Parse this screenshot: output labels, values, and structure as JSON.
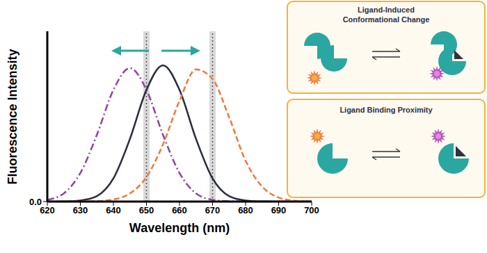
{
  "chart_data": {
    "type": "line",
    "x_label": "Wavelength (nm)",
    "y_label": "Fluorescence Intensity",
    "x": [
      620,
      625,
      630,
      635,
      640,
      645,
      650,
      655,
      660,
      665,
      670,
      675,
      680,
      685,
      690,
      695,
      700
    ],
    "series": [
      {
        "color": "#8e4a9e",
        "line_style": "dashdot",
        "values": [
          0.013,
          0.06,
          0.21,
          0.49,
          0.82,
          0.98,
          0.82,
          0.49,
          0.21,
          0.06,
          0.013,
          0.002,
          0,
          0,
          0,
          0,
          0
        ]
      },
      {
        "color": "#2b3040",
        "line_style": "solid",
        "values": [
          0,
          0.001,
          0.008,
          0.04,
          0.17,
          0.46,
          0.82,
          1.0,
          0.82,
          0.46,
          0.17,
          0.04,
          0.008,
          0.001,
          0,
          0,
          0
        ]
      },
      {
        "color": "#f07c41",
        "line_style": "dashed",
        "values": [
          0,
          0,
          0.001,
          0.003,
          0.015,
          0.06,
          0.18,
          0.42,
          0.74,
          0.97,
          0.9,
          0.62,
          0.3,
          0.11,
          0.03,
          0.006,
          0.001
        ]
      }
    ],
    "xlim": [
      620,
      700
    ],
    "xticks": [
      620,
      630,
      640,
      650,
      660,
      670,
      680,
      690,
      700
    ],
    "ylim": [
      0,
      1.25
    ],
    "yticks": [
      {
        "value": 0,
        "label": "0.0"
      }
    ],
    "reference_lines": [
      650,
      670
    ]
  },
  "panels": [
    {
      "title_lines": [
        "Ligand-Induced",
        "Conformational Change"
      ]
    },
    {
      "title_lines": [
        "Ligand Binding Proximity"
      ]
    }
  ]
}
